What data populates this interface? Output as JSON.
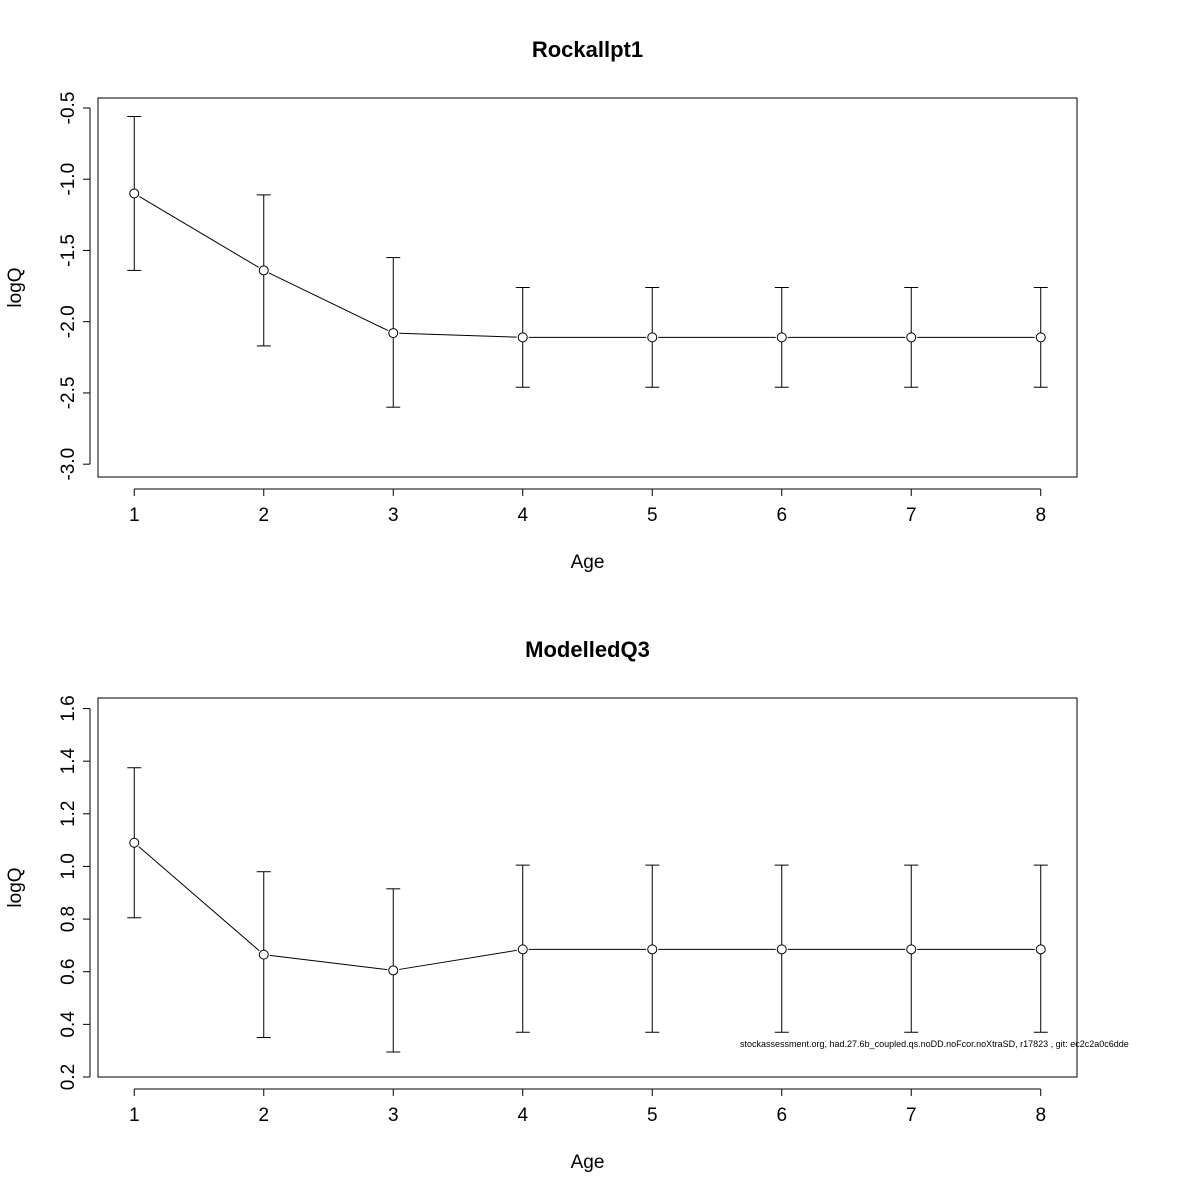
{
  "footnote": "stockassessment.org, had.27.6b_coupled.qs.noDD.noFcor.noXtraSD, r17823 , git: ec2c2a0c6dde",
  "chart_data": [
    {
      "type": "line",
      "title": "Rockallpt1",
      "xlabel": "Age",
      "ylabel": "logQ",
      "x": [
        1,
        2,
        3,
        4,
        5,
        6,
        7,
        8
      ],
      "values": [
        -1.1,
        -1.64,
        -2.08,
        -2.11,
        -2.11,
        -2.11,
        -2.11,
        -2.11
      ],
      "lower": [
        -1.64,
        -2.17,
        -2.6,
        -2.46,
        -2.46,
        -2.46,
        -2.46,
        -2.46
      ],
      "upper": [
        -0.56,
        -1.11,
        -1.55,
        -1.76,
        -1.76,
        -1.76,
        -1.76,
        -1.76
      ],
      "xlim": [
        0.72,
        8.28
      ],
      "ylim": [
        -3.09,
        -0.43
      ],
      "xticks": [
        "1",
        "2",
        "3",
        "4",
        "5",
        "6",
        "7",
        "8"
      ],
      "yticks": [
        "-3.0",
        "-2.5",
        "-2.0",
        "-1.5",
        "-1.0",
        "-0.5"
      ],
      "grid": false,
      "marker": "open-circle-with-error-bars"
    },
    {
      "type": "line",
      "title": "ModelledQ3",
      "xlabel": "Age",
      "ylabel": "logQ",
      "x": [
        1,
        2,
        3,
        4,
        5,
        6,
        7,
        8
      ],
      "values": [
        1.09,
        0.665,
        0.605,
        0.685,
        0.685,
        0.685,
        0.685,
        0.685
      ],
      "lower": [
        0.805,
        0.35,
        0.295,
        0.37,
        0.37,
        0.37,
        0.37,
        0.37
      ],
      "upper": [
        1.375,
        0.98,
        0.915,
        1.005,
        1.005,
        1.005,
        1.005,
        1.005
      ],
      "xlim": [
        0.72,
        8.28
      ],
      "ylim": [
        0.2,
        1.64
      ],
      "xticks": [
        "1",
        "2",
        "3",
        "4",
        "5",
        "6",
        "7",
        "8"
      ],
      "yticks": [
        "0.2",
        "0.4",
        "0.6",
        "0.8",
        "1.0",
        "1.2",
        "1.4",
        "1.6"
      ],
      "grid": false,
      "marker": "open-circle-with-error-bars"
    }
  ]
}
